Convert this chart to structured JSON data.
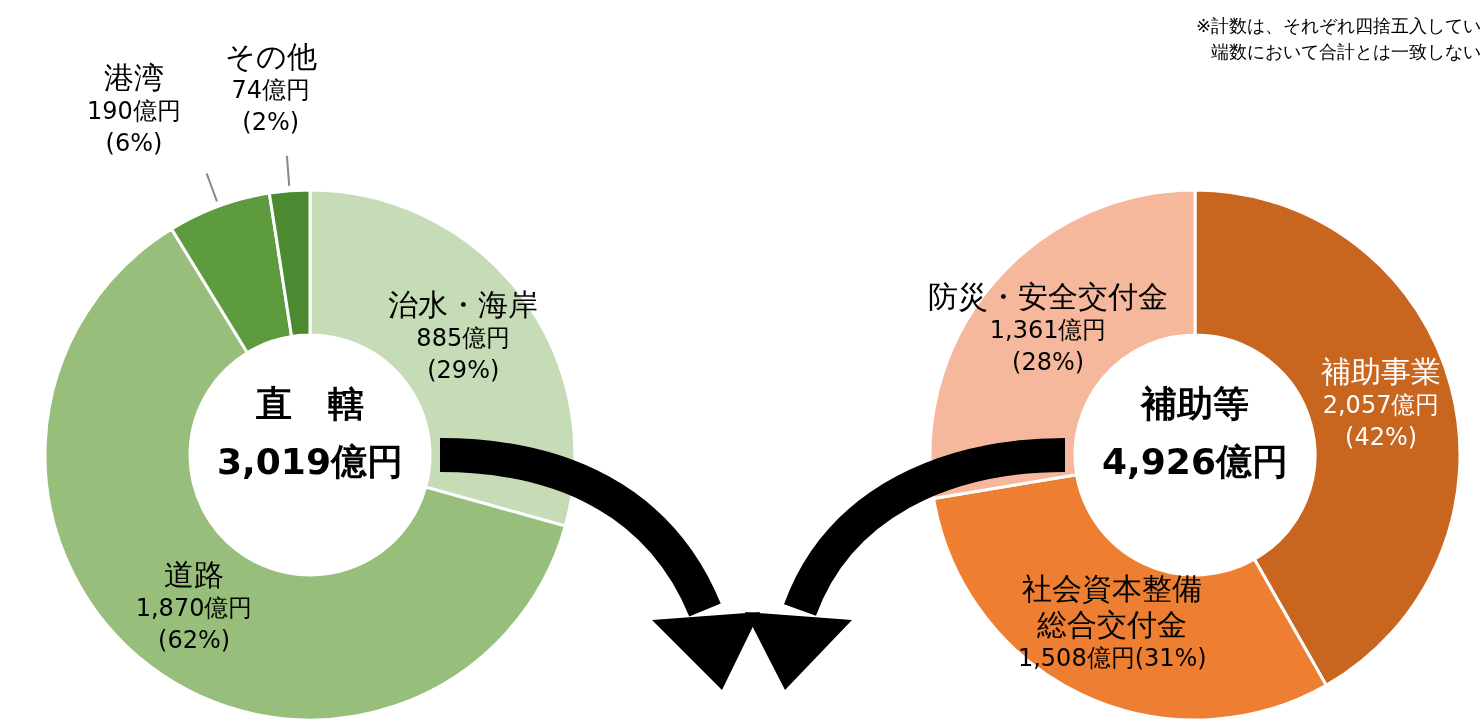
{
  "chart_data": [
    {
      "type": "donut",
      "title": "直　轄",
      "subtitle": "3,019億円",
      "categories": [
        "治水・海岸",
        "道路",
        "港湾",
        "その他"
      ],
      "values": [
        885,
        1870,
        190,
        74
      ],
      "colors": [
        "#c6dcb6",
        "#97be7a",
        "#5e9b3e",
        "#4b8a31"
      ],
      "value_labels": [
        "885億円\n(29%)",
        "1,870億円\n(62%)",
        "190億円\n(6%)",
        "74億円\n(2%)"
      ]
    },
    {
      "type": "donut",
      "title": "補助等",
      "subtitle": "4,926億円",
      "categories": [
        "補助事業",
        "社会資本整備総合交付金",
        "防災・安全交付金"
      ],
      "values": [
        2057,
        1508,
        1361
      ],
      "colors": [
        "#c8651f",
        "#ee7e32",
        "#f5b89c"
      ],
      "value_labels": [
        "2,057億円\n(42%)",
        "1,508億円(31%)",
        "1,361億円\n(28%)"
      ],
      "annotations": [
        "※計数は、それぞれ四捨五入してい端数において合計とは一致しない"
      ]
    }
  ]
}
